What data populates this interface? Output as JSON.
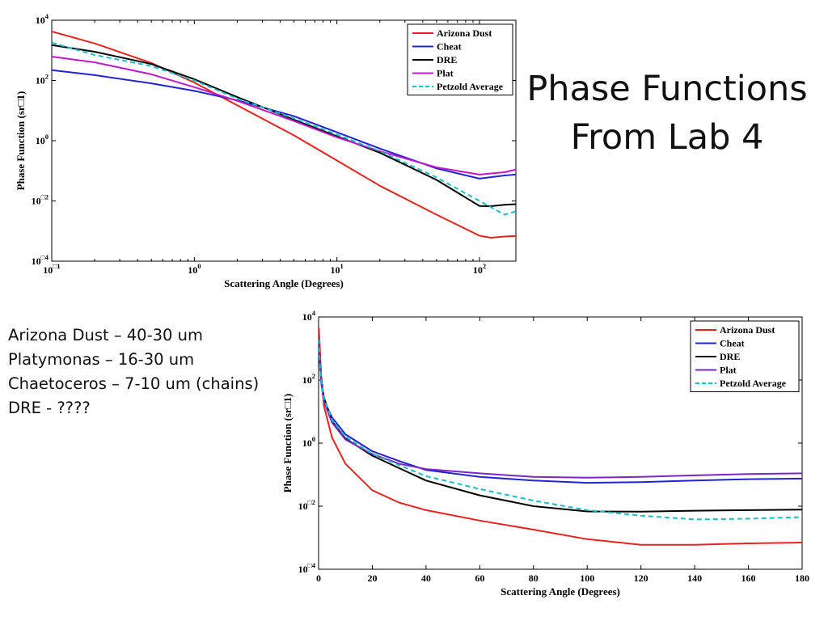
{
  "slide": {
    "title_lines": [
      "Phase Functions",
      "From Lab 4"
    ],
    "notes": [
      "Arizona Dust – 40-30 um",
      "Platymonas – 16-30 um",
      "Chaetoceros – 7-10 um (chains)",
      "DRE - ????"
    ]
  },
  "chart_data": [
    {
      "type": "line",
      "xscale": "log",
      "yscale": "log",
      "xlim": [
        0.1,
        180
      ],
      "ylim": [
        0.0001,
        10000
      ],
      "xlabel": "Scattering Angle (Degrees)",
      "ylabel": "Phase Function (sr□1)",
      "xticks": [
        {
          "value": 0.1,
          "base": "10",
          "exp": "□1"
        },
        {
          "value": 1,
          "base": "10",
          "exp": "0"
        },
        {
          "value": 10,
          "base": "10",
          "exp": "1"
        },
        {
          "value": 100,
          "base": "10",
          "exp": "2"
        }
      ],
      "yticks": [
        {
          "value": 0.0001,
          "base": "10",
          "exp": "□4"
        },
        {
          "value": 0.01,
          "base": "10",
          "exp": "□2"
        },
        {
          "value": 1,
          "base": "10",
          "exp": "0"
        },
        {
          "value": 100,
          "base": "10",
          "exp": "2"
        },
        {
          "value": 10000,
          "base": "10",
          "exp": "4"
        }
      ],
      "grid": false,
      "legend_position": "top-right",
      "series": [
        {
          "name": "Arizona Dust",
          "color": "#e8231f",
          "dash": "solid",
          "x": [
            0.1,
            0.2,
            0.5,
            1,
            2,
            5,
            10,
            20,
            50,
            100,
            120,
            150,
            180
          ],
          "y": [
            4200,
            1700,
            380,
            85,
            15,
            1.5,
            0.22,
            0.032,
            0.0035,
            0.0007,
            0.0006,
            0.00066,
            0.00069
          ]
        },
        {
          "name": "Cheat",
          "color": "#2323d0",
          "dash": "solid",
          "x": [
            0.1,
            0.2,
            0.5,
            1,
            2,
            5,
            10,
            20,
            50,
            100,
            150,
            180
          ],
          "y": [
            220,
            150,
            80,
            45,
            22,
            6.5,
            1.9,
            0.55,
            0.12,
            0.055,
            0.07,
            0.075
          ]
        },
        {
          "name": "DRE",
          "color": "#000000",
          "dash": "solid",
          "x": [
            0.1,
            0.2,
            0.5,
            1,
            2,
            5,
            10,
            20,
            50,
            100,
            120,
            150,
            180
          ],
          "y": [
            1500,
            900,
            350,
            110,
            28,
            5,
            1.4,
            0.4,
            0.05,
            0.0068,
            0.0067,
            0.0075,
            0.0078
          ]
        },
        {
          "name": "Plat",
          "color": "#c219c8",
          "dash": "solid",
          "x": [
            0.1,
            0.2,
            0.5,
            1,
            2,
            5,
            10,
            20,
            50,
            100,
            150,
            180
          ],
          "y": [
            620,
            400,
            160,
            60,
            21,
            4.5,
            1.3,
            0.45,
            0.13,
            0.075,
            0.09,
            0.11
          ]
        },
        {
          "name": "Petzold Average",
          "color": "#17bfc6",
          "dash": "dashed",
          "x": [
            0.1,
            0.2,
            0.5,
            1,
            2,
            5,
            10,
            20,
            50,
            100,
            150,
            180
          ],
          "y": [
            1800,
            700,
            300,
            100,
            25,
            5.5,
            1.6,
            0.45,
            0.06,
            0.01,
            0.0035,
            0.0045
          ]
        }
      ]
    },
    {
      "type": "line",
      "xscale": "linear",
      "yscale": "log",
      "xlim": [
        0,
        180
      ],
      "ylim": [
        0.0001,
        10000
      ],
      "xlabel": "Scattering Angle (Degrees)",
      "ylabel": "Phase Function (sr□1)",
      "xticks": [
        0,
        20,
        40,
        60,
        80,
        100,
        120,
        140,
        160,
        180
      ],
      "yticks": [
        {
          "value": 0.0001,
          "base": "10",
          "exp": "□4"
        },
        {
          "value": 0.01,
          "base": "10",
          "exp": "□2"
        },
        {
          "value": 1,
          "base": "10",
          "exp": "0"
        },
        {
          "value": 100,
          "base": "10",
          "exp": "2"
        },
        {
          "value": 10000,
          "base": "10",
          "exp": "4"
        }
      ],
      "grid": false,
      "legend_position": "top-right",
      "series": [
        {
          "name": "Arizona Dust",
          "color": "#e8231f",
          "dash": "solid",
          "x": [
            0.1,
            0.5,
            1,
            2,
            5,
            10,
            20,
            30,
            40,
            60,
            80,
            100,
            120,
            140,
            160,
            180
          ],
          "y": [
            4500,
            900,
            120,
            15,
            1.5,
            0.22,
            0.032,
            0.013,
            0.0075,
            0.0035,
            0.0018,
            0.0009,
            0.0006,
            0.0006,
            0.00066,
            0.0007
          ]
        },
        {
          "name": "Cheat",
          "color": "#2323d0",
          "dash": "solid",
          "x": [
            0.1,
            0.5,
            1,
            2,
            5,
            10,
            20,
            30,
            40,
            60,
            80,
            100,
            120,
            140,
            160,
            180
          ],
          "y": [
            1500,
            400,
            80,
            22,
            6.5,
            1.9,
            0.55,
            0.27,
            0.14,
            0.085,
            0.065,
            0.055,
            0.058,
            0.065,
            0.072,
            0.075
          ]
        },
        {
          "name": "DRE",
          "color": "#000000",
          "dash": "solid",
          "x": [
            0.1,
            0.5,
            1,
            2,
            5,
            10,
            20,
            30,
            40,
            60,
            80,
            100,
            120,
            140,
            160,
            180
          ],
          "y": [
            1800,
            350,
            110,
            28,
            5,
            1.4,
            0.4,
            0.16,
            0.065,
            0.022,
            0.01,
            0.0068,
            0.0067,
            0.0072,
            0.0075,
            0.0078
          ]
        },
        {
          "name": "Plat",
          "color": "#7a26c8",
          "dash": "solid",
          "x": [
            0.1,
            0.5,
            1,
            2,
            5,
            10,
            20,
            30,
            40,
            60,
            80,
            100,
            120,
            140,
            160,
            180
          ],
          "y": [
            1600,
            350,
            90,
            21,
            4.5,
            1.3,
            0.45,
            0.22,
            0.15,
            0.11,
            0.085,
            0.08,
            0.085,
            0.095,
            0.105,
            0.11
          ]
        },
        {
          "name": "Petzold Average",
          "color": "#17bfc6",
          "dash": "dashed",
          "x": [
            0.1,
            0.5,
            1,
            2,
            5,
            10,
            20,
            30,
            40,
            60,
            80,
            100,
            120,
            140,
            160,
            180
          ],
          "y": [
            2000,
            300,
            100,
            25,
            5.5,
            1.6,
            0.45,
            0.2,
            0.09,
            0.035,
            0.015,
            0.0075,
            0.005,
            0.0038,
            0.004,
            0.0045
          ]
        }
      ]
    }
  ]
}
